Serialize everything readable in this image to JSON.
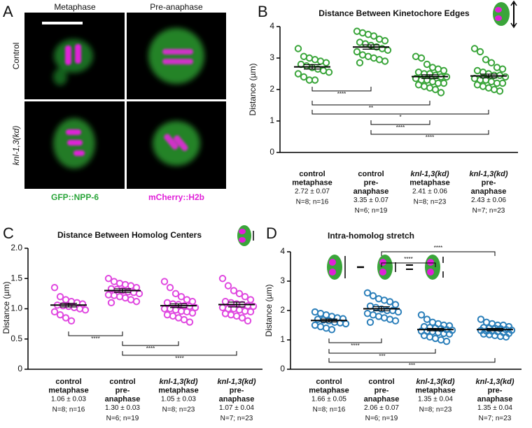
{
  "panel_a": {
    "letter": "A",
    "columns": [
      "Metaphase",
      "Pre-anaphase"
    ],
    "rows": [
      "Control",
      "knl-1,3(kd)"
    ],
    "channels": [
      "GFP::NPP-6",
      "mCherry::H2b"
    ]
  },
  "chart_data": [
    {
      "type": "strip",
      "letter": "B",
      "title": "Distance Between Kinetochore Edges",
      "y_label": "Distance (µm)",
      "color": "#3aa53a",
      "categories": [
        [
          "control",
          "metaphase"
        ],
        [
          "control",
          "pre-",
          "anaphase"
        ],
        [
          "knl-1,3(kd)",
          "metaphase"
        ],
        [
          "knl-1,3(kd)",
          "pre-",
          "anaphase"
        ]
      ],
      "groups": [
        [
          3.3,
          3.05,
          3.0,
          2.95,
          2.9,
          2.85,
          2.8,
          2.75,
          2.7,
          2.65,
          2.6,
          2.55,
          2.5,
          2.4,
          2.3,
          2.3
        ],
        [
          3.85,
          3.8,
          3.75,
          3.7,
          3.6,
          3.55,
          3.5,
          3.45,
          3.4,
          3.35,
          3.3,
          3.25,
          3.2,
          3.1,
          3.05,
          3.0,
          2.95,
          2.9,
          2.85
        ],
        [
          3.05,
          3.0,
          2.8,
          2.7,
          2.65,
          2.6,
          2.55,
          2.5,
          2.5,
          2.45,
          2.4,
          2.4,
          2.35,
          2.3,
          2.3,
          2.25,
          2.2,
          2.2,
          2.15,
          2.1,
          2.05,
          2.0,
          1.9
        ],
        [
          3.3,
          3.2,
          2.95,
          2.85,
          2.7,
          2.65,
          2.6,
          2.55,
          2.5,
          2.45,
          2.45,
          2.4,
          2.35,
          2.3,
          2.3,
          2.25,
          2.2,
          2.2,
          2.15,
          2.1,
          2.05,
          2.0,
          1.95
        ]
      ],
      "means": [
        2.72,
        3.35,
        2.41,
        2.43
      ],
      "sems": [
        0.07,
        0.07,
        0.06,
        0.06
      ],
      "value_labels": [
        "2.72 ± 0.07",
        "3.35 ± 0.07",
        "2.41 ± 0.06",
        "2.43 ± 0.06"
      ],
      "n_labels": [
        "N=8; n=16",
        "N=6; n=19",
        "N=8; n=23",
        "N=7; n=23"
      ],
      "comparisons": [
        {
          "from": 0,
          "to": 1,
          "label": "****"
        },
        {
          "from": 0,
          "to": 2,
          "label": "**"
        },
        {
          "from": 0,
          "to": 3,
          "label": "*"
        },
        {
          "from": 1,
          "to": 2,
          "label": "****"
        },
        {
          "from": 1,
          "to": 3,
          "label": "****"
        }
      ],
      "ylim": [
        0,
        4
      ],
      "yticks": [
        0,
        1,
        2,
        3,
        4
      ]
    },
    {
      "type": "strip",
      "letter": "C",
      "title": "Distance Between Homolog Centers",
      "y_label": "Distance (µm)",
      "color": "#e048e0",
      "categories": [
        [
          "control",
          "metaphase"
        ],
        [
          "control",
          "pre-",
          "anaphase"
        ],
        [
          "knl-1,3(kd)",
          "metaphase"
        ],
        [
          "knl-1,3(kd)",
          "pre-",
          "anaphase"
        ]
      ],
      "groups": [
        [
          1.35,
          1.2,
          1.15,
          1.12,
          1.1,
          1.08,
          1.06,
          1.05,
          1.04,
          1.02,
          1.0,
          0.98,
          0.95,
          0.9,
          0.85,
          0.8
        ],
        [
          1.5,
          1.45,
          1.42,
          1.4,
          1.38,
          1.35,
          1.33,
          1.32,
          1.3,
          1.28,
          1.27,
          1.25,
          1.23,
          1.22,
          1.2,
          1.18,
          1.15,
          1.12,
          1.1
        ],
        [
          1.45,
          1.35,
          1.25,
          1.2,
          1.15,
          1.12,
          1.1,
          1.08,
          1.07,
          1.05,
          1.04,
          1.02,
          1.0,
          1.0,
          0.98,
          0.96,
          0.95,
          0.93,
          0.9,
          0.88,
          0.85,
          0.82,
          0.78
        ],
        [
          1.5,
          1.38,
          1.3,
          1.25,
          1.2,
          1.15,
          1.12,
          1.1,
          1.08,
          1.07,
          1.05,
          1.04,
          1.02,
          1.0,
          1.0,
          0.98,
          0.96,
          0.95,
          0.92,
          0.9,
          0.88,
          0.85,
          0.8
        ]
      ],
      "means": [
        1.06,
        1.3,
        1.05,
        1.07
      ],
      "sems": [
        0.03,
        0.03,
        0.03,
        0.04
      ],
      "value_labels": [
        "1.06 ± 0.03",
        "1.30 ± 0.03",
        "1.05 ± 0.03",
        "1.07 ± 0.04"
      ],
      "n_labels": [
        "N=8; n=16",
        "N=6; n=19",
        "N=8; n=23",
        "N=7; n=23"
      ],
      "comparisons": [
        {
          "from": 0,
          "to": 1,
          "label": "****"
        },
        {
          "from": 1,
          "to": 2,
          "label": "****"
        },
        {
          "from": 1,
          "to": 3,
          "label": "****"
        }
      ],
      "ylim": [
        0,
        2
      ],
      "yticks": [
        0,
        0.5,
        {
          "value": 1,
          "label": "1.0"
        },
        1.5,
        {
          "value": 2,
          "label": "2.0"
        }
      ]
    },
    {
      "type": "strip",
      "letter": "D",
      "title": "Intra-homolog stretch",
      "y_label": "Distance (µm)",
      "color": "#2b7fba",
      "categories": [
        [
          "control",
          "metaphase"
        ],
        [
          "control",
          "pre-",
          "anaphase"
        ],
        [
          "knl-1,3(kd)",
          "metaphase"
        ],
        [
          "knl-1,3(kd)",
          "pre-",
          "anaphase"
        ]
      ],
      "groups": [
        [
          1.95,
          1.9,
          1.85,
          1.8,
          1.75,
          1.72,
          1.7,
          1.68,
          1.65,
          1.6,
          1.58,
          1.55,
          1.5,
          1.45,
          1.4,
          1.35
        ],
        [
          2.6,
          2.5,
          2.4,
          2.35,
          2.3,
          2.2,
          2.15,
          2.1,
          2.05,
          2.0,
          2.0,
          1.95,
          1.9,
          1.85,
          1.8,
          1.75,
          1.7,
          1.65,
          1.6
        ],
        [
          1.85,
          1.7,
          1.6,
          1.55,
          1.5,
          1.48,
          1.45,
          1.42,
          1.4,
          1.38,
          1.35,
          1.33,
          1.3,
          1.3,
          1.28,
          1.25,
          1.22,
          1.2,
          1.15,
          1.1,
          1.05,
          1.0,
          0.95
        ],
        [
          1.7,
          1.6,
          1.55,
          1.5,
          1.5,
          1.45,
          1.42,
          1.4,
          1.4,
          1.38,
          1.35,
          1.33,
          1.32,
          1.3,
          1.3,
          1.28,
          1.25,
          1.22,
          1.2,
          1.18,
          1.15,
          1.12,
          1.1
        ]
      ],
      "means": [
        1.66,
        2.06,
        1.35,
        1.35
      ],
      "sems": [
        0.05,
        0.07,
        0.04,
        0.04
      ],
      "value_labels": [
        "1.66 ± 0.05",
        "2.06 ± 0.07",
        "1.35 ± 0.04",
        "1.35 ± 0.04"
      ],
      "n_labels": [
        "N=8; n=16",
        "N=6; n=19",
        "N=8; n=23",
        "N=7; n=23"
      ],
      "comparisons": [
        {
          "from": 1,
          "to": 2,
          "label": "****"
        },
        {
          "from": 1,
          "to": 3,
          "label": "****"
        },
        {
          "from": 0,
          "to": 1,
          "label": "****"
        },
        {
          "from": 0,
          "to": 2,
          "label": "***"
        },
        {
          "from": 0,
          "to": 3,
          "label": "***"
        }
      ],
      "ylim": [
        0,
        4
      ],
      "yticks": [
        0,
        1,
        2,
        3,
        4
      ]
    }
  ]
}
